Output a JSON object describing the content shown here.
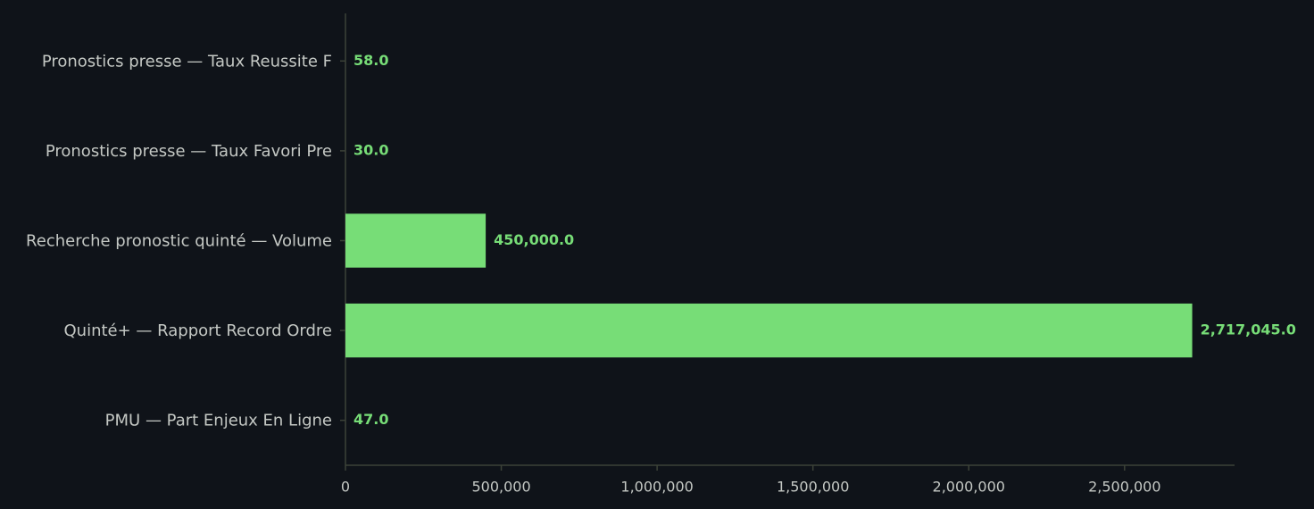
{
  "chart_data": {
    "type": "barh",
    "categories": [
      "Pronostics presse — Taux Reussite F",
      "Pronostics presse — Taux Favori Pre",
      "Recherche pronostic quinté — Volume",
      "Quinté+ — Rapport Record Ordre",
      "PMU — Part Enjeux En Ligne"
    ],
    "values": [
      58,
      30,
      450000,
      2717045,
      47
    ],
    "value_labels": [
      "58.0",
      "30.0",
      "450,000.0",
      "2,717,045.0",
      "47.0"
    ],
    "color": "#77dd77",
    "xlim": [
      0,
      2852897
    ],
    "xticks": [
      0,
      {
        "value": 500000,
        "label": "500,000"
      },
      {
        "value": 1000000,
        "label": "1,000,000"
      },
      {
        "value": 1500000,
        "label": "1,500,000"
      },
      {
        "value": 2000000,
        "label": "2,000,000"
      },
      {
        "value": 2500000,
        "label": "2,500,000"
      }
    ],
    "grid": false
  }
}
